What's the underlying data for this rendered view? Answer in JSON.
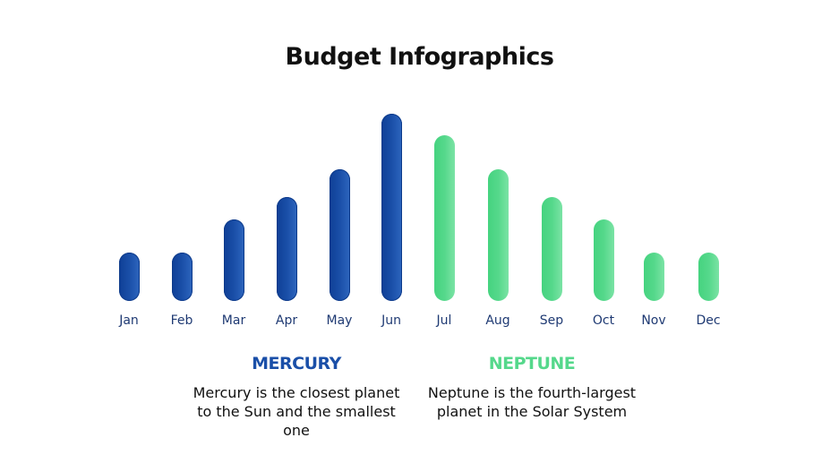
{
  "title": "Budget Infographics",
  "colors": {
    "mercury": "#1a4fa8",
    "neptune": "#55d88b",
    "label": "#1f3a73"
  },
  "legend": [
    {
      "name": "MERCURY",
      "color": "#1a4fa8",
      "text": "Mercury is the closest planet to the Sun and the smallest one"
    },
    {
      "name": "NEPTUNE",
      "color": "#55d88b",
      "text": "Neptune is the fourth-largest planet in the Solar System"
    }
  ],
  "chart_data": {
    "type": "bar",
    "title": "Budget Infographics",
    "categories": [
      "Jan",
      "Feb",
      "Mar",
      "Apr",
      "May",
      "Jun",
      "Jul",
      "Aug",
      "Sep",
      "Oct",
      "Nov",
      "Dec"
    ],
    "series": [
      {
        "name": "MERCURY",
        "color": "#1a4fa8",
        "values": [
          54,
          54,
          91,
          116,
          147,
          209,
          null,
          null,
          null,
          null,
          null,
          null
        ]
      },
      {
        "name": "NEPTUNE",
        "color": "#55d88b",
        "values": [
          null,
          null,
          null,
          null,
          null,
          null,
          185,
          147,
          116,
          91,
          54,
          54
        ]
      }
    ],
    "values_relative": [
      26,
      26,
      44,
      56,
      70,
      100,
      89,
      70,
      56,
      44,
      26,
      26
    ],
    "xlabel": "",
    "ylabel": "",
    "grid": false,
    "axis_visible": false,
    "legend_position": "bottom"
  }
}
